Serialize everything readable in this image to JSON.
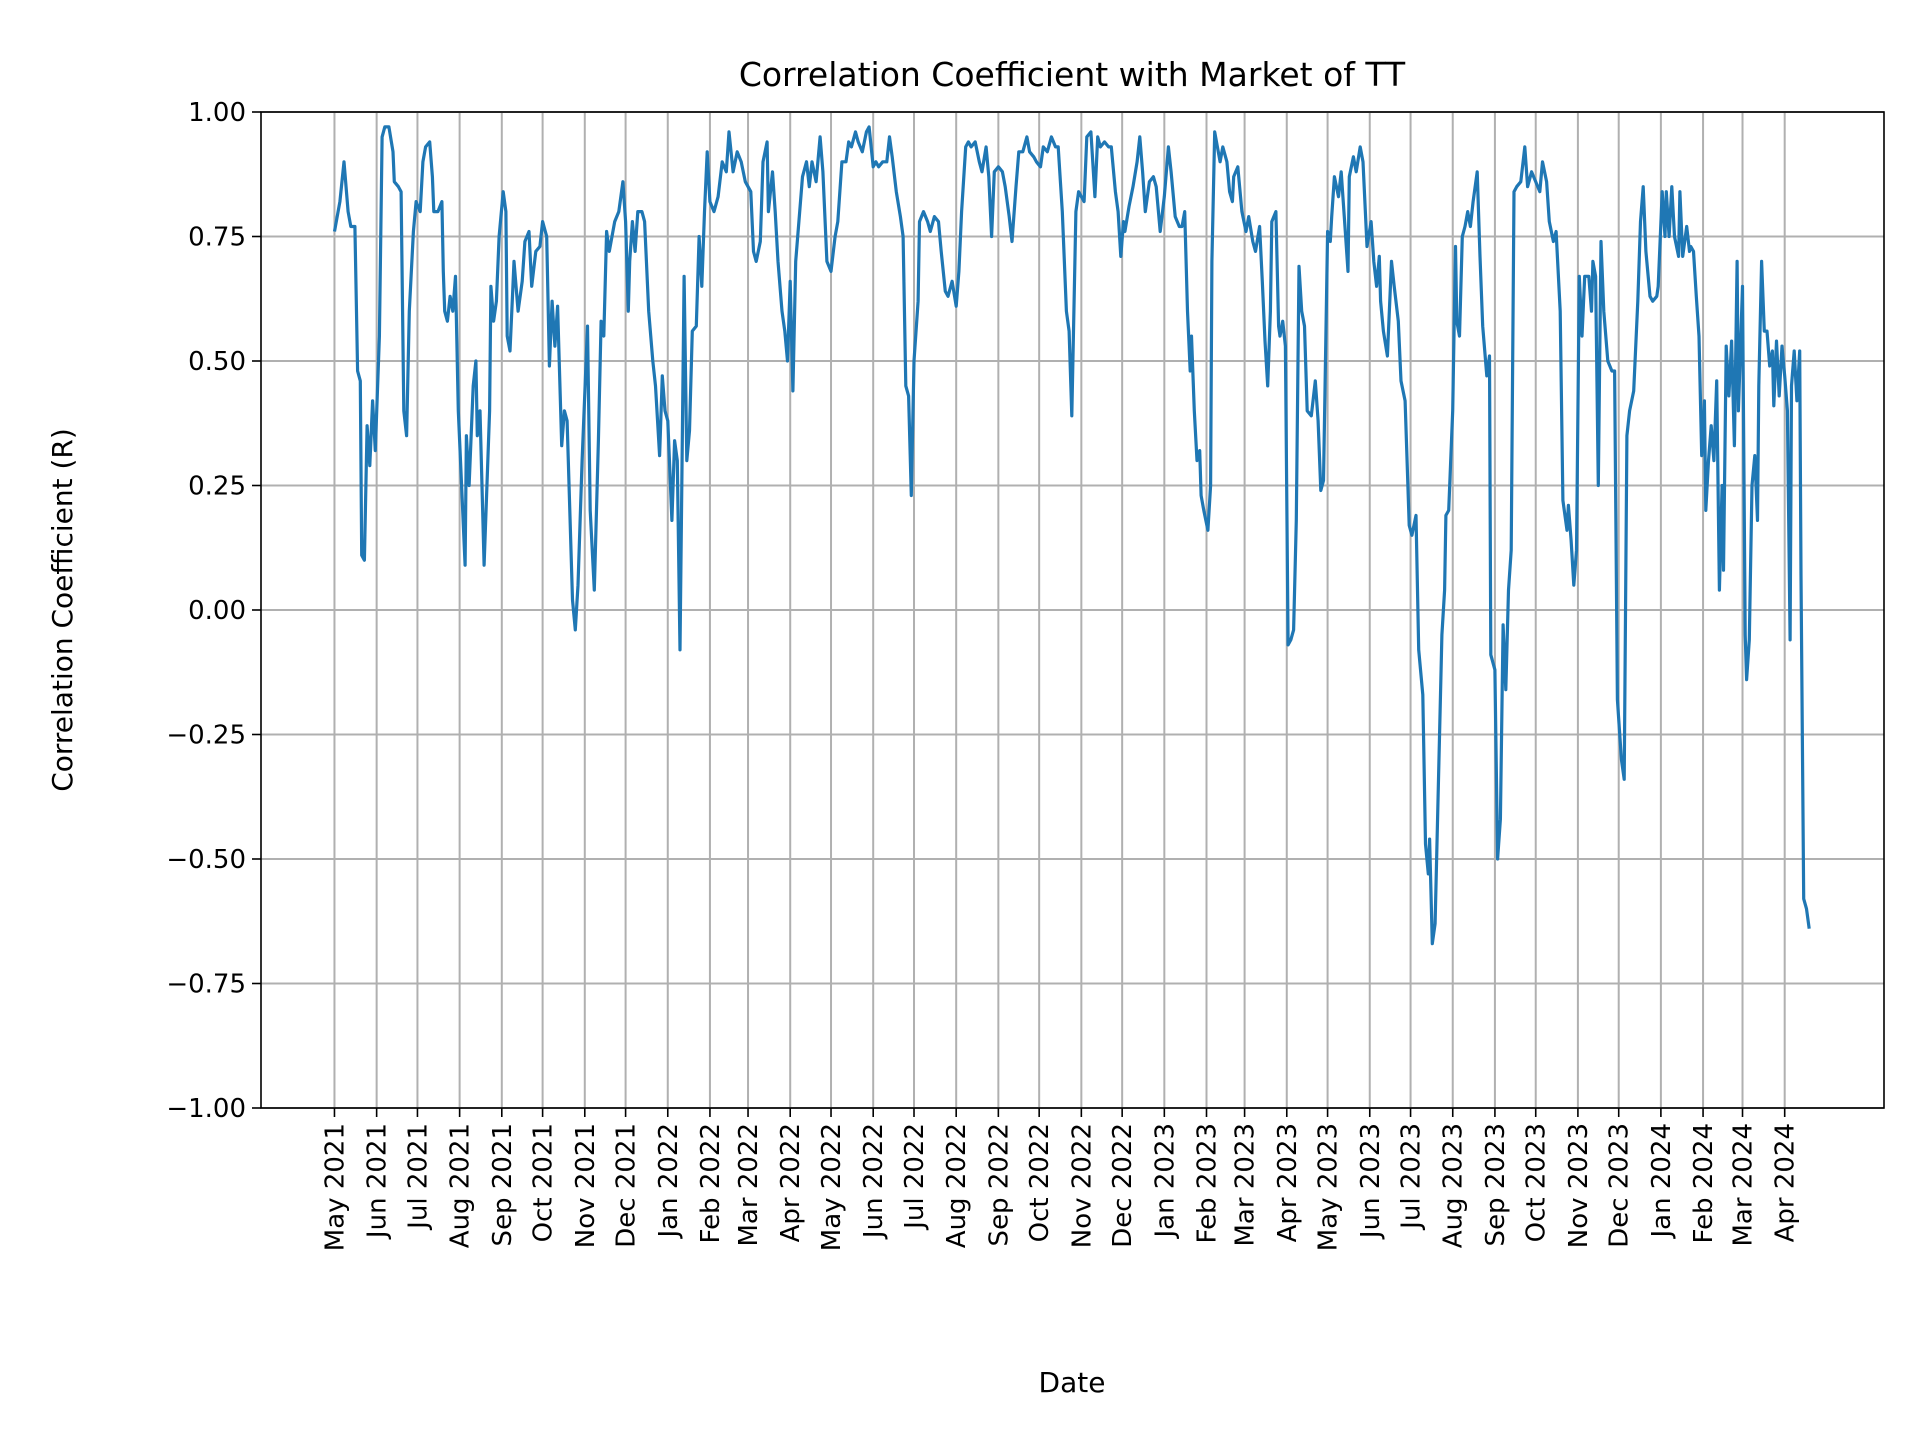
{
  "chart_data": {
    "type": "line",
    "title": "Correlation Coefficient with Market of TT",
    "xlabel": "Date",
    "ylabel": "Correlation Coefficient (R)",
    "ylim": [
      -1.0,
      1.0
    ],
    "xlim": [
      "2021-03-08",
      "2024-06-13"
    ],
    "grid": true,
    "line_color": "#1f77b4",
    "y_ticks": [
      "−1.00",
      "−0.75",
      "−0.50",
      "−0.25",
      "0.00",
      "0.25",
      "0.50",
      "0.75",
      "1.00"
    ],
    "y_tick_values": [
      -1.0,
      -0.75,
      -0.5,
      -0.25,
      0.0,
      0.25,
      0.5,
      0.75,
      1.0
    ],
    "x_ticks": [
      "May 2021",
      "Jun 2021",
      "Jul 2021",
      "Aug 2021",
      "Sep 2021",
      "Oct 2021",
      "Nov 2021",
      "Dec 2021",
      "Jan 2022",
      "Feb 2022",
      "Mar 2022",
      "Apr 2022",
      "May 2022",
      "Jun 2022",
      "Jul 2022",
      "Aug 2022",
      "Sep 2022",
      "Oct 2022",
      "Nov 2022",
      "Dec 2022",
      "Jan 2023",
      "Feb 2023",
      "Mar 2023",
      "Apr 2023",
      "May 2023",
      "Jun 2023",
      "Jul 2023",
      "Aug 2023",
      "Sep 2023",
      "Oct 2023",
      "Nov 2023",
      "Dec 2023",
      "Jan 2024",
      "Feb 2024",
      "Mar 2024",
      "Apr 2024"
    ],
    "x_tick_dates": [
      "2021-05-01",
      "2021-06-01",
      "2021-07-01",
      "2021-08-01",
      "2021-09-01",
      "2021-10-01",
      "2021-11-01",
      "2021-12-01",
      "2022-01-01",
      "2022-02-01",
      "2022-03-01",
      "2022-04-01",
      "2022-05-01",
      "2022-06-01",
      "2022-07-01",
      "2022-08-01",
      "2022-09-01",
      "2022-10-01",
      "2022-11-01",
      "2022-12-01",
      "2023-01-01",
      "2023-02-01",
      "2023-03-01",
      "2023-04-01",
      "2023-05-01",
      "2023-06-01",
      "2023-07-01",
      "2023-08-01",
      "2023-09-01",
      "2023-10-01",
      "2023-11-01",
      "2023-12-01",
      "2024-01-01",
      "2024-02-01",
      "2024-03-01",
      "2024-04-01"
    ],
    "series": [
      {
        "month": "2021-05",
        "days": [
          1,
          5,
          8,
          11,
          13,
          16,
          18,
          20,
          21,
          23,
          25,
          27,
          29,
          31
        ],
        "values": [
          0.76,
          0.82,
          0.9,
          0.8,
          0.77,
          0.77,
          0.48,
          0.46,
          0.11,
          0.1,
          0.37,
          0.29,
          0.42,
          0.32
        ]
      },
      {
        "month": "2021-06",
        "days": [
          3,
          5,
          7,
          10,
          13,
          14,
          17,
          19,
          21,
          23,
          25,
          28,
          30
        ],
        "values": [
          0.55,
          0.95,
          0.97,
          0.97,
          0.92,
          0.86,
          0.85,
          0.84,
          0.4,
          0.35,
          0.6,
          0.76,
          0.82
        ]
      },
      {
        "month": "2021-07",
        "days": [
          3,
          5,
          7,
          10,
          12,
          13,
          16,
          19,
          20,
          21,
          23,
          25,
          27,
          29,
          31
        ],
        "values": [
          0.8,
          0.9,
          0.93,
          0.94,
          0.87,
          0.8,
          0.8,
          0.82,
          0.68,
          0.6,
          0.58,
          0.63,
          0.6,
          0.67,
          0.4
        ]
      },
      {
        "month": "2021-08",
        "days": [
          5,
          6,
          8,
          11,
          13,
          14,
          16,
          19,
          23,
          24,
          26,
          28,
          30
        ],
        "values": [
          0.09,
          0.35,
          0.25,
          0.45,
          0.5,
          0.35,
          0.4,
          0.09,
          0.4,
          0.65,
          0.58,
          0.62,
          0.75
        ]
      },
      {
        "month": "2021-09",
        "days": [
          2,
          4,
          5,
          7,
          9,
          10,
          13,
          16,
          18,
          21,
          23,
          26,
          29
        ],
        "values": [
          0.84,
          0.8,
          0.55,
          0.52,
          0.64,
          0.7,
          0.6,
          0.66,
          0.74,
          0.76,
          0.65,
          0.72,
          0.73
        ]
      },
      {
        "month": "2021-10",
        "days": [
          1,
          4,
          6,
          8,
          10,
          12,
          15,
          17,
          19,
          23,
          25,
          27,
          30
        ],
        "values": [
          0.78,
          0.75,
          0.49,
          0.62,
          0.53,
          0.61,
          0.33,
          0.4,
          0.38,
          0.02,
          -0.04,
          0.05,
          0.3
        ]
      },
      {
        "month": "2021-11",
        "days": [
          3,
          5,
          8,
          11,
          13,
          15,
          17,
          19,
          21,
          23,
          26,
          29
        ],
        "values": [
          0.57,
          0.2,
          0.04,
          0.34,
          0.58,
          0.55,
          0.76,
          0.72,
          0.75,
          0.78,
          0.8,
          0.86
        ]
      },
      {
        "month": "2021-12",
        "days": [
          1,
          3,
          4,
          6,
          8,
          10,
          13,
          15,
          18,
          21,
          23,
          26,
          28,
          30
        ],
        "values": [
          0.78,
          0.6,
          0.7,
          0.78,
          0.72,
          0.8,
          0.8,
          0.78,
          0.6,
          0.5,
          0.45,
          0.31,
          0.47,
          0.4
        ]
      },
      {
        "month": "2022-01",
        "days": [
          1,
          4,
          6,
          8,
          10,
          13,
          15,
          17,
          19,
          22,
          24,
          26,
          28,
          30
        ],
        "values": [
          0.38,
          0.18,
          0.34,
          0.3,
          -0.08,
          0.67,
          0.3,
          0.36,
          0.56,
          0.57,
          0.75,
          0.65,
          0.8,
          0.92
        ]
      },
      {
        "month": "2022-02",
        "days": [
          1,
          4,
          7,
          10,
          13,
          15,
          18,
          21,
          24,
          27
        ],
        "values": [
          0.82,
          0.8,
          0.83,
          0.9,
          0.88,
          0.96,
          0.88,
          0.92,
          0.9,
          0.86
        ]
      },
      {
        "month": "2022-03",
        "days": [
          3,
          5,
          7,
          10,
          12,
          15,
          16,
          19,
          21,
          23,
          26,
          28,
          30
        ],
        "values": [
          0.84,
          0.72,
          0.7,
          0.74,
          0.9,
          0.94,
          0.8,
          0.88,
          0.8,
          0.7,
          0.6,
          0.56,
          0.5
        ]
      },
      {
        "month": "2022-04",
        "days": [
          1,
          3,
          5,
          8,
          10,
          13,
          15,
          17,
          20,
          23,
          25,
          28
        ],
        "values": [
          0.66,
          0.44,
          0.7,
          0.8,
          0.87,
          0.9,
          0.85,
          0.9,
          0.86,
          0.95,
          0.88,
          0.7
        ]
      },
      {
        "month": "2022-05",
        "days": [
          1,
          4,
          6,
          9,
          12,
          14,
          16,
          19,
          21,
          24,
          27,
          29
        ],
        "values": [
          0.68,
          0.75,
          0.78,
          0.9,
          0.9,
          0.94,
          0.93,
          0.96,
          0.94,
          0.92,
          0.96,
          0.97
        ]
      },
      {
        "month": "2022-06",
        "days": [
          1,
          3,
          5,
          8,
          11,
          13,
          15,
          18,
          21,
          23,
          25,
          27,
          29
        ],
        "values": [
          0.89,
          0.9,
          0.89,
          0.9,
          0.9,
          0.95,
          0.91,
          0.84,
          0.79,
          0.75,
          0.45,
          0.43,
          0.23
        ]
      },
      {
        "month": "2022-07",
        "days": [
          1,
          4,
          5,
          8,
          11,
          13,
          16,
          19,
          21,
          24,
          26,
          29
        ],
        "values": [
          0.5,
          0.62,
          0.78,
          0.8,
          0.78,
          0.76,
          0.79,
          0.78,
          0.72,
          0.64,
          0.63,
          0.66
        ]
      },
      {
        "month": "2022-08",
        "days": [
          1,
          3,
          5,
          8,
          10,
          12,
          15,
          18,
          20,
          23,
          25,
          27,
          29
        ],
        "values": [
          0.61,
          0.68,
          0.8,
          0.93,
          0.94,
          0.93,
          0.94,
          0.9,
          0.88,
          0.93,
          0.87,
          0.75,
          0.88
        ]
      },
      {
        "month": "2022-09",
        "days": [
          1,
          4,
          6,
          9,
          11,
          14,
          16,
          19,
          22,
          24,
          27,
          29
        ],
        "values": [
          0.89,
          0.88,
          0.85,
          0.79,
          0.74,
          0.85,
          0.92,
          0.92,
          0.95,
          0.92,
          0.91,
          0.9
        ]
      },
      {
        "month": "2022-10",
        "days": [
          2,
          4,
          7,
          10,
          13,
          15,
          18,
          21,
          23,
          25,
          28,
          30
        ],
        "values": [
          0.89,
          0.93,
          0.92,
          0.95,
          0.93,
          0.93,
          0.8,
          0.6,
          0.56,
          0.39,
          0.8,
          0.84
        ]
      },
      {
        "month": "2022-11",
        "days": [
          3,
          5,
          8,
          11,
          13,
          15,
          18,
          21,
          23,
          26,
          28,
          30
        ],
        "values": [
          0.82,
          0.95,
          0.96,
          0.83,
          0.95,
          0.93,
          0.94,
          0.93,
          0.93,
          0.84,
          0.8,
          0.71
        ]
      },
      {
        "month": "2022-12",
        "days": [
          2,
          3,
          6,
          9,
          12,
          14,
          16,
          18,
          21,
          24,
          26,
          29
        ],
        "values": [
          0.78,
          0.76,
          0.81,
          0.85,
          0.9,
          0.95,
          0.88,
          0.8,
          0.86,
          0.87,
          0.85,
          0.76
        ]
      },
      {
        "month": "2023-01",
        "days": [
          1,
          4,
          6,
          9,
          12,
          14,
          16,
          18,
          20,
          21,
          23,
          25,
          27,
          28,
          30
        ],
        "values": [
          0.83,
          0.93,
          0.88,
          0.79,
          0.77,
          0.77,
          0.8,
          0.6,
          0.48,
          0.55,
          0.4,
          0.3,
          0.32,
          0.23,
          0.2
        ]
      },
      {
        "month": "2023-02",
        "days": [
          2,
          4,
          5,
          7,
          9,
          11,
          13,
          16,
          18,
          20,
          21,
          24,
          27
        ],
        "values": [
          0.16,
          0.25,
          0.7,
          0.96,
          0.93,
          0.9,
          0.93,
          0.9,
          0.84,
          0.82,
          0.87,
          0.89,
          0.8
        ]
      },
      {
        "month": "2023-03",
        "days": [
          2,
          4,
          7,
          9,
          12,
          14,
          16,
          18,
          20,
          21,
          24,
          26,
          27,
          29,
          31
        ],
        "values": [
          0.76,
          0.79,
          0.74,
          0.72,
          0.77,
          0.66,
          0.54,
          0.45,
          0.6,
          0.78,
          0.8,
          0.57,
          0.55,
          0.58,
          0.53
        ]
      },
      {
        "month": "2023-04",
        "days": [
          2,
          4,
          6,
          8,
          10,
          12,
          14,
          16,
          19,
          22,
          24,
          26,
          28
        ],
        "values": [
          -0.07,
          -0.06,
          -0.04,
          0.18,
          0.69,
          0.6,
          0.57,
          0.4,
          0.39,
          0.46,
          0.38,
          0.24,
          0.26
        ]
      },
      {
        "month": "2023-05",
        "days": [
          1,
          3,
          4,
          6,
          9,
          11,
          14,
          16,
          17,
          20,
          22,
          25,
          27,
          30
        ],
        "values": [
          0.76,
          0.74,
          0.79,
          0.87,
          0.83,
          0.88,
          0.76,
          0.68,
          0.87,
          0.91,
          0.88,
          0.93,
          0.9,
          0.73
        ]
      },
      {
        "month": "2023-06",
        "days": [
          2,
          4,
          6,
          8,
          9,
          11,
          14,
          17,
          19,
          22,
          24,
          27,
          30
        ],
        "values": [
          0.78,
          0.7,
          0.65,
          0.71,
          0.62,
          0.56,
          0.51,
          0.7,
          0.65,
          0.58,
          0.46,
          0.42,
          0.17
        ]
      },
      {
        "month": "2023-07",
        "days": [
          2,
          5,
          7,
          10,
          12,
          14,
          15,
          17,
          19,
          21,
          24,
          26,
          27,
          29
        ],
        "values": [
          0.15,
          0.19,
          -0.08,
          -0.17,
          -0.47,
          -0.53,
          -0.46,
          -0.67,
          -0.63,
          -0.4,
          -0.05,
          0.04,
          0.19,
          0.2
        ]
      },
      {
        "month": "2023-08",
        "days": [
          1,
          3,
          4,
          6,
          8,
          10,
          12,
          14,
          16,
          19,
          21,
          23,
          26,
          28,
          29
        ],
        "values": [
          0.4,
          0.73,
          0.58,
          0.55,
          0.75,
          0.77,
          0.8,
          0.77,
          0.82,
          0.88,
          0.71,
          0.57,
          0.47,
          0.51,
          -0.09
        ]
      },
      {
        "month": "2023-09",
        "days": [
          1,
          3,
          5,
          7,
          9,
          11,
          13,
          15,
          17,
          20,
          23,
          25,
          28
        ],
        "values": [
          -0.12,
          -0.5,
          -0.42,
          -0.03,
          -0.16,
          0.04,
          0.12,
          0.84,
          0.85,
          0.86,
          0.93,
          0.85,
          0.88
        ]
      },
      {
        "month": "2023-10",
        "days": [
          1,
          4,
          6,
          9,
          11,
          14,
          16,
          19,
          21,
          24,
          25,
          27,
          29,
          31
        ],
        "values": [
          0.86,
          0.84,
          0.9,
          0.86,
          0.78,
          0.74,
          0.76,
          0.6,
          0.22,
          0.16,
          0.21,
          0.14,
          0.05,
          0.12
        ]
      },
      {
        "month": "2023-11",
        "days": [
          2,
          4,
          6,
          9,
          11,
          12,
          14,
          16,
          18,
          20,
          23,
          26,
          28,
          30
        ],
        "values": [
          0.67,
          0.55,
          0.67,
          0.67,
          0.6,
          0.7,
          0.67,
          0.25,
          0.74,
          0.6,
          0.5,
          0.48,
          0.48,
          -0.18
        ]
      },
      {
        "month": "2023-12",
        "days": [
          3,
          5,
          7,
          9,
          12,
          15,
          17,
          19,
          21,
          24,
          26,
          29,
          30
        ],
        "values": [
          -0.3,
          -0.34,
          0.35,
          0.4,
          0.44,
          0.62,
          0.78,
          0.85,
          0.72,
          0.63,
          0.62,
          0.63,
          0.65
        ]
      },
      {
        "month": "2024-01",
        "days": [
          2,
          4,
          5,
          7,
          9,
          11,
          14,
          15,
          17,
          20,
          22,
          23,
          25,
          27,
          29,
          31
        ],
        "values": [
          0.84,
          0.75,
          0.84,
          0.75,
          0.85,
          0.75,
          0.71,
          0.84,
          0.71,
          0.77,
          0.72,
          0.73,
          0.72,
          0.63,
          0.55,
          0.31
        ]
      },
      {
        "month": "2024-02",
        "days": [
          2,
          3,
          5,
          7,
          9,
          11,
          13,
          15,
          16,
          18,
          20,
          22,
          24,
          26,
          27
        ],
        "values": [
          0.42,
          0.2,
          0.3,
          0.37,
          0.3,
          0.46,
          0.04,
          0.25,
          0.08,
          0.53,
          0.43,
          0.54,
          0.33,
          0.7,
          0.4
        ]
      },
      {
        "month": "2024-03",
        "days": [
          1,
          3,
          4,
          6,
          8,
          10,
          12,
          13,
          15,
          17,
          19,
          21,
          23,
          24,
          26,
          28,
          30
        ],
        "values": [
          0.65,
          -0.05,
          -0.14,
          -0.06,
          0.25,
          0.31,
          0.18,
          0.45,
          0.7,
          0.56,
          0.56,
          0.49,
          0.52,
          0.41,
          0.54,
          0.43,
          0.53
        ]
      },
      {
        "month": "2024-04",
        "days": [
          1,
          3,
          5,
          6,
          8,
          10,
          12,
          13,
          15,
          17,
          19
        ],
        "values": [
          0.47,
          0.4,
          -0.06,
          0.45,
          0.52,
          0.42,
          0.52,
          0.07,
          -0.58,
          -0.6,
          -0.64
        ]
      }
    ]
  }
}
